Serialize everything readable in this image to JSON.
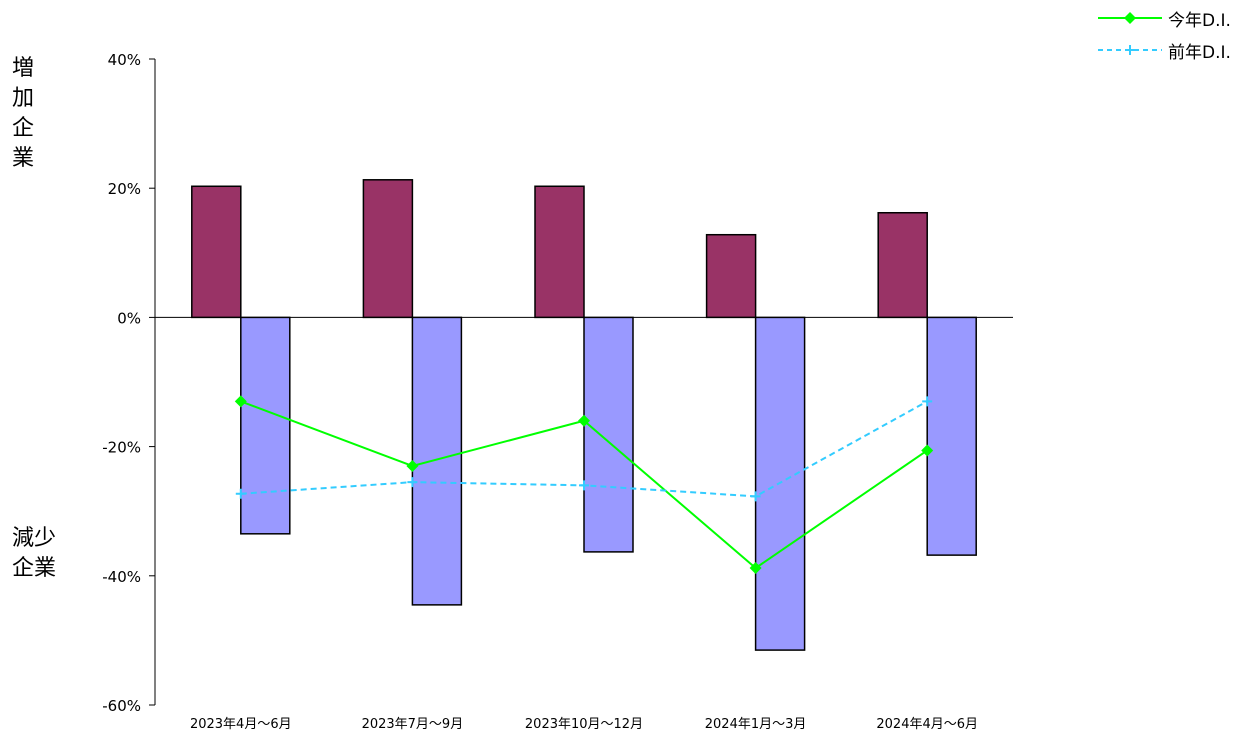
{
  "chart_data": {
    "type": "bar",
    "categories": [
      "2023年4月～6月",
      "2023年7月～9月",
      "2023年10月～12月",
      "2024年1月～3月",
      "2024年4月～6月"
    ],
    "bars": [
      {
        "values": [
          20.3,
          21.3,
          20.3,
          12.8,
          16.2
        ],
        "color": "#993366"
      },
      {
        "values": [
          -33.5,
          -44.5,
          -36.3,
          -51.5,
          -36.8
        ],
        "color": "#9999FF"
      }
    ],
    "lines": [
      {
        "name": "今年D.I.",
        "values": [
          -13.0,
          -23.0,
          -16.0,
          -38.8,
          -20.6
        ],
        "color": "#00FF00",
        "style": "solid",
        "marker": "diamond"
      },
      {
        "name": "前年D.I.",
        "values": [
          -27.3,
          -25.5,
          -26.0,
          -27.7,
          -13.0
        ],
        "color": "#33CCFF",
        "style": "dashed",
        "marker": "plus"
      }
    ],
    "ylim": [
      -60,
      40
    ],
    "yticks": [
      40,
      20,
      0,
      -20,
      -40,
      -60
    ],
    "ytick_labels": [
      "40%",
      "20%",
      "0%",
      "-20%",
      "-40%",
      "-60%"
    ],
    "side_labels": {
      "upper": "増加企業",
      "lower": "減少企業"
    },
    "legend_position": "top-right",
    "grid": false
  }
}
